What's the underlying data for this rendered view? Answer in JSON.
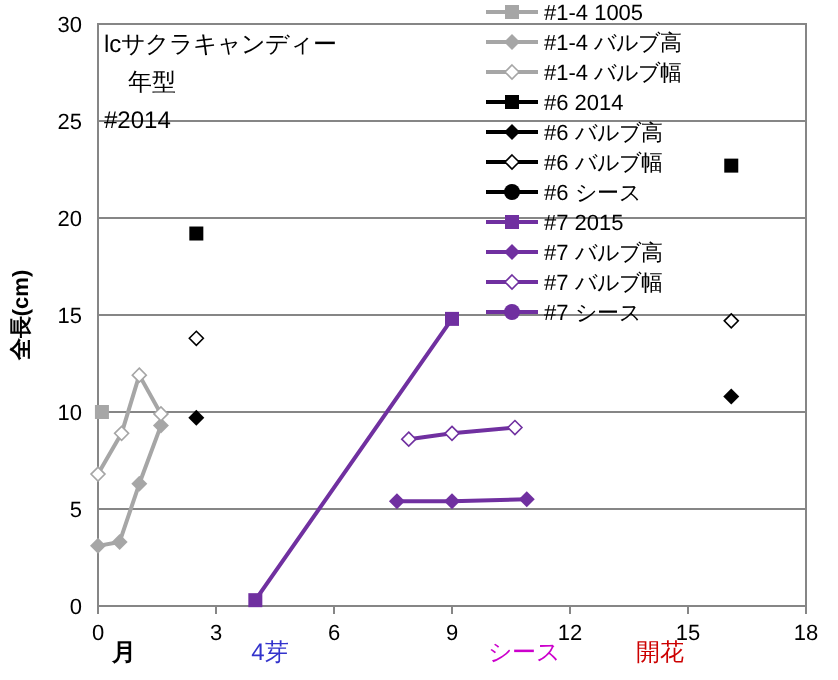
{
  "chart_data": {
    "type": "line",
    "ylabel": "全長(cm)",
    "xlim": [
      0,
      18
    ],
    "xticks": [
      0,
      3,
      6,
      9,
      12,
      15,
      18
    ],
    "ylim": [
      0,
      30
    ],
    "yticks": [
      0,
      5,
      10,
      15,
      20,
      25,
      30
    ],
    "grid": "y",
    "legend": "top right",
    "annotations": [
      "lcサクラキャンディー",
      "年型",
      "#2014",
      "月",
      "4芽",
      "シース",
      "開花"
    ],
    "series": [
      {
        "name": "#1-4 1005",
        "color": "#a6a6a6",
        "marker": "square",
        "x": [
          0.1
        ],
        "values": [
          10
        ]
      },
      {
        "name": "#1-4 バルブ高",
        "color": "#a6a6a6",
        "marker": "diamond",
        "x": [
          0,
          0.55,
          1.05,
          1.6
        ],
        "values": [
          3.1,
          3.3,
          6.3,
          9.3
        ]
      },
      {
        "name": "#1-4 バルブ幅",
        "color": "#a6a6a6",
        "marker": "diamond_open",
        "x": [
          0,
          0.6,
          1.05,
          1.6
        ],
        "values": [
          6.8,
          8.9,
          11.9,
          9.9
        ]
      },
      {
        "name": "#6 2014",
        "color": "#000000",
        "marker": "square",
        "type": "scatter",
        "x": [
          2.5,
          16.1
        ],
        "values": [
          19.2,
          22.7
        ]
      },
      {
        "name": "#6 バルブ高",
        "color": "#000000",
        "marker": "diamond",
        "type": "scatter",
        "x": [
          2.5,
          16.1
        ],
        "values": [
          9.7,
          10.8
        ]
      },
      {
        "name": "#6 バルブ幅",
        "color": "#000000",
        "marker": "diamond_open",
        "type": "scatter",
        "x": [
          2.5,
          16.1
        ],
        "values": [
          13.8,
          14.7
        ]
      },
      {
        "name": "#6 シース",
        "color": "#000000",
        "marker": "circle",
        "type": "scatter"
      },
      {
        "name": "#7 2015",
        "color": "#7030a0",
        "marker": "square",
        "x": [
          4,
          9
        ],
        "values": [
          0.3,
          14.8
        ]
      },
      {
        "name": "#7 バルブ高",
        "color": "#7030a0",
        "marker": "diamond",
        "x": [
          7.6,
          9,
          10.9
        ],
        "values": [
          5.4,
          5.4,
          5.5
        ]
      },
      {
        "name": "#7 バルブ幅",
        "color": "#7030a0",
        "marker": "diamond_open",
        "x": [
          7.9,
          9,
          10.6
        ],
        "values": [
          8.6,
          8.9,
          9.2
        ]
      },
      {
        "name": "#7 シース",
        "color": "#7030a0",
        "marker": "circle"
      }
    ]
  }
}
